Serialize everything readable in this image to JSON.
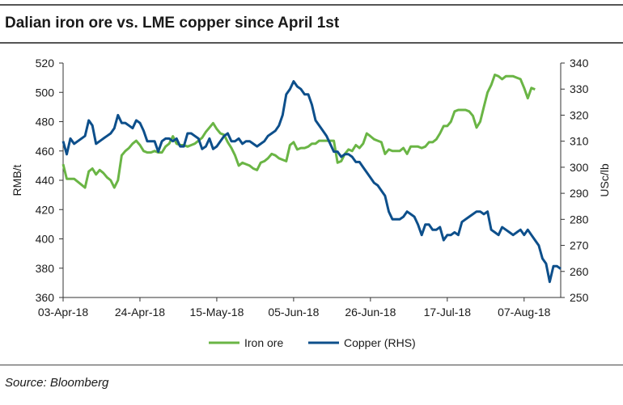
{
  "title": "Dalian iron ore vs. LME copper since April 1st",
  "source": "Source: Bloomberg",
  "colors": {
    "iron_ore": "#6ab545",
    "copper": "#0d4f8b",
    "axis": "#333333"
  },
  "chart_data": {
    "type": "line",
    "title": "Dalian iron ore vs. LME copper since April 1st",
    "xlabel": "",
    "ylabel": "RMB/t",
    "y2label": "USc/lb",
    "ylim": [
      360,
      520
    ],
    "y2lim": [
      250,
      340
    ],
    "yticks": [
      360,
      380,
      400,
      420,
      440,
      460,
      480,
      500,
      520
    ],
    "y2ticks": [
      250,
      260,
      270,
      280,
      290,
      300,
      310,
      320,
      330,
      340
    ],
    "xtick_labels": [
      "03-Apr-18",
      "24-Apr-18",
      "15-May-18",
      "05-Jun-18",
      "26-Jun-18",
      "17-Jul-18",
      "07-Aug-18"
    ],
    "xlim_days": [
      0,
      136
    ],
    "grid": false,
    "legend": "bottom",
    "series": [
      {
        "name": "Iron ore",
        "axis": "left",
        "points": [
          [
            0,
            451
          ],
          [
            1,
            441
          ],
          [
            2,
            441
          ],
          [
            3,
            441
          ],
          [
            4,
            439
          ],
          [
            5,
            437
          ],
          [
            6,
            435
          ],
          [
            7,
            446
          ],
          [
            8,
            448
          ],
          [
            9,
            444
          ],
          [
            10,
            447
          ],
          [
            11,
            445
          ],
          [
            12,
            442
          ],
          [
            13,
            440
          ],
          [
            14,
            435
          ],
          [
            15,
            440
          ],
          [
            16,
            457
          ],
          [
            17,
            460
          ],
          [
            18,
            462
          ],
          [
            19,
            465
          ],
          [
            20,
            467
          ],
          [
            21,
            464
          ],
          [
            22,
            460
          ],
          [
            23,
            459
          ],
          [
            24,
            459
          ],
          [
            25,
            460
          ],
          [
            26,
            459
          ],
          [
            27,
            459
          ],
          [
            28,
            463
          ],
          [
            29,
            465
          ],
          [
            30,
            470
          ],
          [
            31,
            465
          ],
          [
            32,
            464
          ],
          [
            33,
            464
          ],
          [
            34,
            463
          ],
          [
            35,
            464
          ],
          [
            36,
            465
          ],
          [
            37,
            467
          ],
          [
            38,
            469
          ],
          [
            39,
            473
          ],
          [
            40,
            476
          ],
          [
            41,
            479
          ],
          [
            42,
            475
          ],
          [
            43,
            472
          ],
          [
            44,
            471
          ],
          [
            45,
            466
          ],
          [
            46,
            462
          ],
          [
            47,
            457
          ],
          [
            48,
            450
          ],
          [
            49,
            452
          ],
          [
            50,
            451
          ],
          [
            51,
            450
          ],
          [
            52,
            448
          ],
          [
            53,
            447
          ],
          [
            54,
            452
          ],
          [
            55,
            453
          ],
          [
            56,
            455
          ],
          [
            57,
            458
          ],
          [
            58,
            457
          ],
          [
            59,
            455
          ],
          [
            60,
            454
          ],
          [
            61,
            453
          ],
          [
            62,
            464
          ],
          [
            63,
            466
          ],
          [
            64,
            461
          ],
          [
            65,
            462
          ],
          [
            66,
            462
          ],
          [
            67,
            463
          ],
          [
            68,
            465
          ],
          [
            69,
            465
          ],
          [
            70,
            467
          ],
          [
            71,
            467
          ],
          [
            72,
            467
          ],
          [
            73,
            467
          ],
          [
            74,
            467
          ],
          [
            75,
            452
          ],
          [
            76,
            453
          ],
          [
            77,
            458
          ],
          [
            78,
            461
          ],
          [
            79,
            460
          ],
          [
            80,
            464
          ],
          [
            81,
            462
          ],
          [
            82,
            465
          ],
          [
            83,
            472
          ],
          [
            84,
            470
          ],
          [
            85,
            468
          ],
          [
            86,
            467
          ],
          [
            87,
            466
          ],
          [
            88,
            458
          ],
          [
            89,
            461
          ],
          [
            90,
            460
          ],
          [
            91,
            460
          ],
          [
            92,
            460
          ],
          [
            93,
            462
          ],
          [
            94,
            458
          ],
          [
            95,
            463
          ],
          [
            96,
            463
          ],
          [
            97,
            463
          ],
          [
            98,
            462
          ],
          [
            99,
            463
          ],
          [
            100,
            466
          ],
          [
            101,
            466
          ],
          [
            102,
            468
          ],
          [
            103,
            472
          ],
          [
            104,
            477
          ],
          [
            105,
            477
          ],
          [
            106,
            480
          ],
          [
            107,
            487
          ],
          [
            108,
            488
          ],
          [
            109,
            488
          ],
          [
            110,
            488
          ],
          [
            111,
            487
          ],
          [
            112,
            484
          ],
          [
            113,
            476
          ],
          [
            114,
            480
          ],
          [
            115,
            490
          ],
          [
            116,
            500
          ],
          [
            117,
            505
          ],
          [
            118,
            512
          ],
          [
            119,
            511
          ],
          [
            120,
            509
          ],
          [
            121,
            511
          ],
          [
            122,
            511
          ],
          [
            123,
            511
          ],
          [
            124,
            510
          ],
          [
            125,
            509
          ],
          [
            126,
            503
          ],
          [
            127,
            496
          ],
          [
            128,
            503
          ],
          [
            129,
            502
          ]
        ]
      },
      {
        "name": "Copper (RHS)",
        "axis": "right",
        "points": [
          [
            0,
            310
          ],
          [
            1,
            305
          ],
          [
            2,
            311
          ],
          [
            3,
            309
          ],
          [
            4,
            310
          ],
          [
            5,
            311
          ],
          [
            6,
            312
          ],
          [
            7,
            318
          ],
          [
            8,
            316
          ],
          [
            9,
            309
          ],
          [
            10,
            310
          ],
          [
            11,
            311
          ],
          [
            12,
            312
          ],
          [
            13,
            313
          ],
          [
            14,
            315
          ],
          [
            15,
            320
          ],
          [
            16,
            317
          ],
          [
            17,
            317
          ],
          [
            18,
            316
          ],
          [
            19,
            315
          ],
          [
            20,
            318
          ],
          [
            21,
            317
          ],
          [
            22,
            314
          ],
          [
            23,
            310
          ],
          [
            24,
            310
          ],
          [
            25,
            310
          ],
          [
            26,
            306
          ],
          [
            27,
            310
          ],
          [
            28,
            311
          ],
          [
            29,
            311
          ],
          [
            30,
            310
          ],
          [
            31,
            311
          ],
          [
            32,
            308
          ],
          [
            33,
            308
          ],
          [
            34,
            313
          ],
          [
            35,
            313
          ],
          [
            36,
            312
          ],
          [
            37,
            311
          ],
          [
            38,
            307
          ],
          [
            39,
            308
          ],
          [
            40,
            311
          ],
          [
            41,
            307
          ],
          [
            42,
            308
          ],
          [
            43,
            310
          ],
          [
            44,
            312
          ],
          [
            45,
            313
          ],
          [
            46,
            310
          ],
          [
            47,
            310
          ],
          [
            48,
            311
          ],
          [
            49,
            309
          ],
          [
            50,
            310
          ],
          [
            51,
            310
          ],
          [
            52,
            309
          ],
          [
            53,
            308
          ],
          [
            54,
            309
          ],
          [
            55,
            310
          ],
          [
            56,
            312
          ],
          [
            57,
            313
          ],
          [
            58,
            314
          ],
          [
            59,
            316
          ],
          [
            60,
            320
          ],
          [
            61,
            328
          ],
          [
            62,
            330
          ],
          [
            63,
            333
          ],
          [
            64,
            331
          ],
          [
            65,
            330
          ],
          [
            66,
            328
          ],
          [
            67,
            328
          ],
          [
            68,
            324
          ],
          [
            69,
            318
          ],
          [
            70,
            316
          ],
          [
            71,
            314
          ],
          [
            72,
            312
          ],
          [
            73,
            309
          ],
          [
            74,
            306
          ],
          [
            75,
            306
          ],
          [
            76,
            304
          ],
          [
            77,
            305
          ],
          [
            78,
            305
          ],
          [
            79,
            304
          ],
          [
            80,
            302
          ],
          [
            81,
            302
          ],
          [
            82,
            300
          ],
          [
            83,
            298
          ],
          [
            84,
            296
          ],
          [
            85,
            294
          ],
          [
            86,
            293
          ],
          [
            87,
            291
          ],
          [
            88,
            289
          ],
          [
            89,
            283
          ],
          [
            90,
            280
          ],
          [
            91,
            280
          ],
          [
            92,
            280
          ],
          [
            93,
            281
          ],
          [
            94,
            283
          ],
          [
            95,
            282
          ],
          [
            96,
            281
          ],
          [
            97,
            278
          ],
          [
            98,
            274
          ],
          [
            99,
            278
          ],
          [
            100,
            278
          ],
          [
            101,
            276
          ],
          [
            102,
            276
          ],
          [
            103,
            277
          ],
          [
            104,
            272
          ],
          [
            105,
            274
          ],
          [
            106,
            274
          ],
          [
            107,
            275
          ],
          [
            108,
            274
          ],
          [
            109,
            279
          ],
          [
            110,
            280
          ],
          [
            111,
            281
          ],
          [
            112,
            282
          ],
          [
            113,
            283
          ],
          [
            114,
            283
          ],
          [
            115,
            282
          ],
          [
            116,
            283
          ],
          [
            117,
            276
          ],
          [
            118,
            275
          ],
          [
            119,
            274
          ],
          [
            120,
            277
          ],
          [
            121,
            276
          ],
          [
            122,
            275
          ],
          [
            123,
            274
          ],
          [
            124,
            275
          ],
          [
            125,
            276
          ],
          [
            126,
            274
          ],
          [
            127,
            276
          ],
          [
            128,
            274
          ],
          [
            129,
            272
          ],
          [
            130,
            270
          ],
          [
            131,
            265
          ],
          [
            132,
            263
          ],
          [
            133,
            256
          ],
          [
            134,
            262
          ],
          [
            135,
            262
          ],
          [
            136,
            261
          ]
        ]
      }
    ]
  }
}
